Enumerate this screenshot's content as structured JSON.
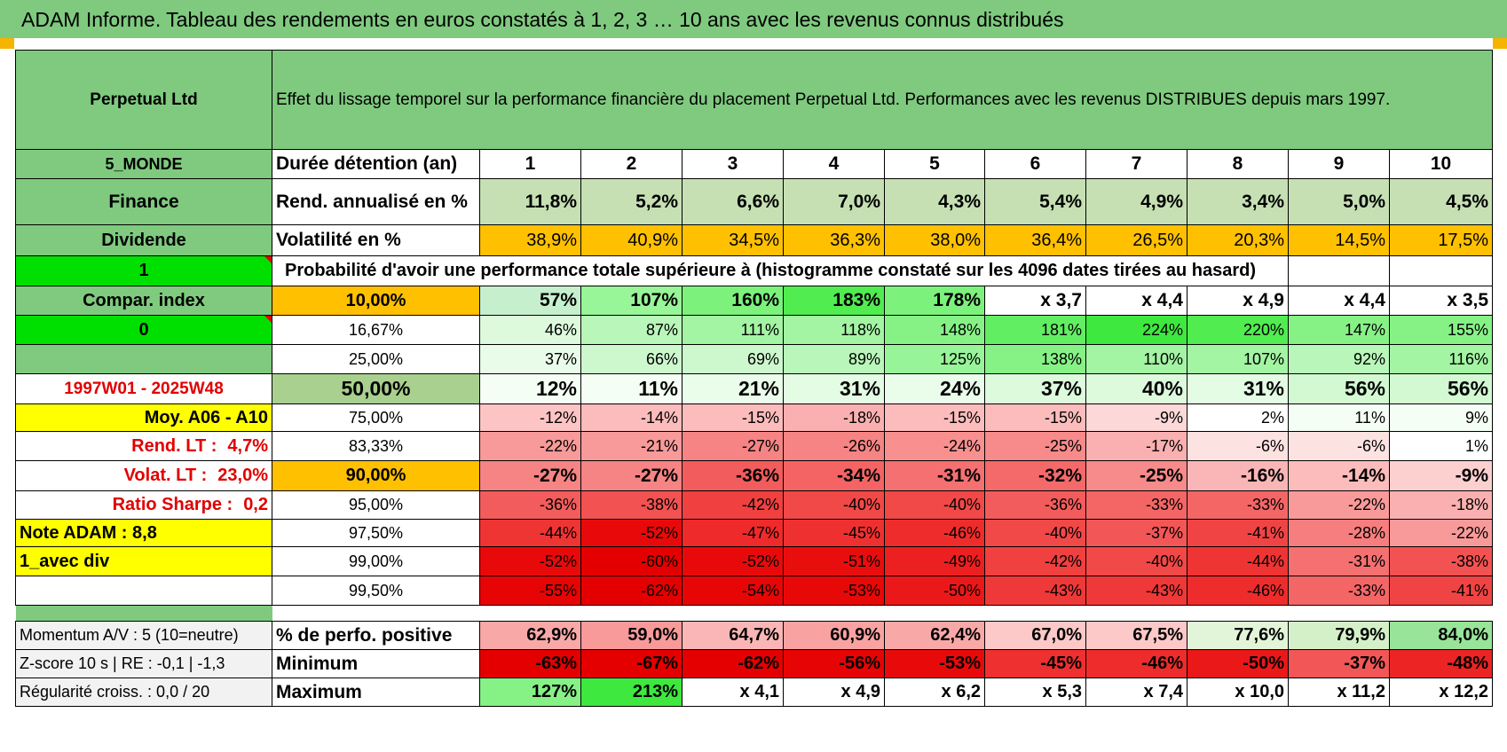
{
  "title": "ADAM Informe. Tableau des rendements en euros constatés à 1, 2, 3 … 10 ans avec les revenus connus distribués",
  "fund": "Perpetual Ltd",
  "description": "Effet du lissage temporel sur la performance financière du placement Perpetual Ltd. Performances avec les revenus DISTRIBUES depuis mars 1997.",
  "left": {
    "region": "5_MONDE",
    "sector": "Finance",
    "type": "Dividende",
    "selector1": "1",
    "compar_index": "Compar. index",
    "selector2": "0",
    "period": "1997W01 - 2025W48",
    "moy": "Moy. A06 - A10",
    "rend_lt_label": "Rend. LT :",
    "rend_lt_value": "4,7%",
    "volat_lt_label": "Volat. LT :",
    "volat_lt_value": "23,0%",
    "sharpe_label": "Ratio Sharpe :",
    "sharpe_value": "0,2",
    "note": "Note ADAM : 8,8",
    "avec_div": "1_avec div",
    "momentum": "Momentum A/V : 5 (10=neutre)",
    "zscore": "Z-score 10 s | RE : -0,1 | -1,3",
    "regularite": "Régularité croiss. : 0,0 / 20"
  },
  "header": {
    "duration_label": "Durée détention (an)",
    "years": [
      "1",
      "2",
      "3",
      "4",
      "5",
      "6",
      "7",
      "8",
      "9",
      "10"
    ]
  },
  "rend": {
    "label": "Rend. annualisé en %",
    "values": [
      "11,8%",
      "5,2%",
      "6,6%",
      "7,0%",
      "4,3%",
      "5,4%",
      "4,9%",
      "3,4%",
      "5,0%",
      "4,5%"
    ]
  },
  "vol": {
    "label": "Volatilité en %",
    "values": [
      "38,9%",
      "40,9%",
      "34,5%",
      "36,3%",
      "38,0%",
      "36,4%",
      "26,5%",
      "20,3%",
      "14,5%",
      "17,5%"
    ]
  },
  "prob_title": "Probabilité d'avoir une performance totale supérieure à (histogramme constaté sur les 4096 dates tirées au hasard)",
  "percentiles": [
    {
      "p": "10,00%",
      "values": [
        "57%",
        "107%",
        "160%",
        "183%",
        "178%",
        "x 3,7",
        "x 4,4",
        "x 4,9",
        "x 4,4",
        "x 3,5"
      ],
      "colors": [
        "#c6efce",
        "#98f598",
        "#7cf27c",
        "#50ec50",
        "#7cf27c",
        "#ffffff",
        "#ffffff",
        "#ffffff",
        "#ffffff",
        "#ffffff"
      ]
    },
    {
      "p": "16,67%",
      "values": [
        "46%",
        "87%",
        "111%",
        "118%",
        "148%",
        "181%",
        "224%",
        "220%",
        "147%",
        "155%"
      ],
      "colors": [
        "#ddfadd",
        "#b9f6b9",
        "#a3f4a3",
        "#a3f4a3",
        "#86f286",
        "#62ee62",
        "#3ee83e",
        "#50ec50",
        "#86f286",
        "#86f286"
      ]
    },
    {
      "p": "25,00%",
      "values": [
        "37%",
        "66%",
        "69%",
        "89%",
        "125%",
        "138%",
        "110%",
        "107%",
        "92%",
        "116%"
      ],
      "colors": [
        "#e9fce9",
        "#cdf8cd",
        "#cdf8cd",
        "#b9f6b9",
        "#98f498",
        "#86f286",
        "#a3f4a3",
        "#a3f4a3",
        "#b9f6b9",
        "#a3f4a3"
      ]
    },
    {
      "p": "50,00%",
      "values": [
        "12%",
        "11%",
        "21%",
        "31%",
        "24%",
        "37%",
        "40%",
        "31%",
        "56%",
        "56%"
      ],
      "colors": [
        "#f4fef4",
        "#f4fef4",
        "#eafcea",
        "#e4fbe4",
        "#eafcea",
        "#ddfadd",
        "#ddfadd",
        "#e4fbe4",
        "#d2f9d2",
        "#d2f9d2"
      ]
    },
    {
      "p": "75,00%",
      "values": [
        "-12%",
        "-14%",
        "-15%",
        "-18%",
        "-15%",
        "-15%",
        "-9%",
        "2%",
        "11%",
        "9%"
      ],
      "colors": [
        "#fcc4c4",
        "#fcbcbc",
        "#fcbcbc",
        "#fab0b0",
        "#fcbcbc",
        "#fcbcbc",
        "#fdd8d8",
        "#ffffff",
        "#f4fef4",
        "#f4fef4"
      ]
    },
    {
      "p": "83,33%",
      "values": [
        "-22%",
        "-21%",
        "-27%",
        "-26%",
        "-24%",
        "-25%",
        "-17%",
        "-6%",
        "-6%",
        "1%"
      ],
      "colors": [
        "#f89a9a",
        "#f89a9a",
        "#f68484",
        "#f68484",
        "#f89090",
        "#f78a8a",
        "#fab0b0",
        "#fde2e2",
        "#fde2e2",
        "#ffffff"
      ]
    },
    {
      "p": "90,00%",
      "values": [
        "-27%",
        "-27%",
        "-36%",
        "-34%",
        "-31%",
        "-32%",
        "-25%",
        "-16%",
        "-14%",
        "-9%"
      ],
      "colors": [
        "#f68484",
        "#f68484",
        "#f35c5c",
        "#f46464",
        "#f57070",
        "#f46a6a",
        "#f78a8a",
        "#fab6b6",
        "#fcbcbc",
        "#fdd0d0"
      ]
    },
    {
      "p": "95,00%",
      "values": [
        "-36%",
        "-38%",
        "-42%",
        "-40%",
        "-40%",
        "-36%",
        "-33%",
        "-33%",
        "-22%",
        "-18%"
      ],
      "colors": [
        "#f35c5c",
        "#f25252",
        "#f04040",
        "#f14848",
        "#f14848",
        "#f35c5c",
        "#f46666",
        "#f46666",
        "#f89a9a",
        "#fab0b0"
      ]
    },
    {
      "p": "97,50%",
      "values": [
        "-44%",
        "-52%",
        "-47%",
        "-45%",
        "-46%",
        "-40%",
        "-37%",
        "-41%",
        "-28%",
        "-22%"
      ],
      "colors": [
        "#ef3434",
        "#e80a0a",
        "#ee2a2a",
        "#ef3030",
        "#ee2c2c",
        "#f14848",
        "#f25656",
        "#f04444",
        "#f67e7e",
        "#f89a9a"
      ]
    },
    {
      "p": "99,00%",
      "values": [
        "-52%",
        "-60%",
        "-52%",
        "-51%",
        "-49%",
        "-42%",
        "-40%",
        "-44%",
        "-31%",
        "-38%"
      ],
      "colors": [
        "#e80a0a",
        "#e40000",
        "#e80a0a",
        "#e80e0e",
        "#ec2020",
        "#f04040",
        "#f14848",
        "#ef3434",
        "#f57070",
        "#f25252"
      ]
    },
    {
      "p": "99,50%",
      "values": [
        "-55%",
        "-62%",
        "-54%",
        "-53%",
        "-50%",
        "-43%",
        "-43%",
        "-46%",
        "-33%",
        "-41%"
      ],
      "colors": [
        "#e60404",
        "#e40000",
        "#e60606",
        "#e70808",
        "#ea1818",
        "#ef3838",
        "#ef3838",
        "#ee2c2c",
        "#f46666",
        "#f04444"
      ]
    }
  ],
  "bottom": {
    "pos_label": "% de perfo. positive",
    "pos_values": [
      "62,9%",
      "59,0%",
      "64,7%",
      "60,9%",
      "62,4%",
      "67,0%",
      "67,5%",
      "77,6%",
      "79,9%",
      "84,0%"
    ],
    "pos_colors": [
      "#f9a8a8",
      "#f89a9a",
      "#fab6b6",
      "#f9a2a2",
      "#f9a8a8",
      "#fcc8c8",
      "#fcc8c8",
      "#e2f5d8",
      "#d4f0c8",
      "#98e498"
    ],
    "min_label": "Minimum",
    "min_values": [
      "-63%",
      "-67%",
      "-62%",
      "-56%",
      "-53%",
      "-45%",
      "-46%",
      "-50%",
      "-37%",
      "-48%"
    ],
    "min_colors": [
      "#e40000",
      "#e40000",
      "#e40000",
      "#e60404",
      "#e80a0a",
      "#ef3030",
      "#ee2c2c",
      "#ea1818",
      "#f25656",
      "#ec2424"
    ],
    "max_label": "Maximum",
    "max_values": [
      "127%",
      "213%",
      "x 4,1",
      "x 4,9",
      "x 6,2",
      "x 5,3",
      "x 7,4",
      "x 10,0",
      "x 11,2",
      "x 12,2"
    ],
    "max_colors": [
      "#86f286",
      "#3ee83e",
      "#ffffff",
      "#ffffff",
      "#ffffff",
      "#ffffff",
      "#ffffff",
      "#ffffff",
      "#ffffff",
      "#ffffff"
    ]
  }
}
